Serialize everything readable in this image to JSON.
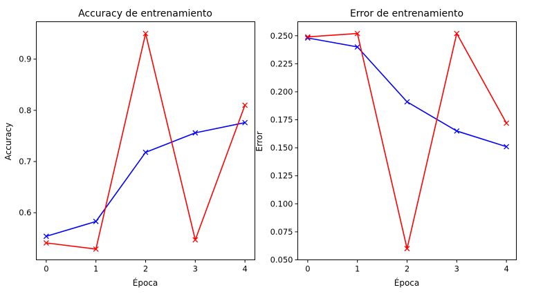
{
  "chart_data": [
    {
      "type": "line",
      "title": "Accuracy de entrenamiento",
      "xlabel": "Época",
      "ylabel": "Accuracy",
      "x": [
        0,
        1,
        2,
        3,
        4
      ],
      "xlim": [
        -0.2,
        4.2
      ],
      "ylim": [
        0.508,
        0.973
      ],
      "xticks": [
        0,
        1,
        2,
        3,
        4
      ],
      "yticks": [
        0.6,
        0.7,
        0.8,
        0.9
      ],
      "ytick_labels": [
        "0.6",
        "0.7",
        "0.8",
        "0.9"
      ],
      "grid": false,
      "series": [
        {
          "color": "#0000ff",
          "marker": "x",
          "values": [
            0.554,
            0.583,
            0.718,
            0.756,
            0.776
          ]
        },
        {
          "color": "#ff0000",
          "marker": "x",
          "values": [
            0.541,
            0.529,
            0.95,
            0.547,
            0.81
          ]
        }
      ]
    },
    {
      "type": "line",
      "title": "Error de entrenamiento",
      "xlabel": "Época",
      "ylabel": "Error",
      "x": [
        0,
        1,
        2,
        3,
        4
      ],
      "xlim": [
        -0.2,
        4.2
      ],
      "ylim": [
        0.05,
        0.2625
      ],
      "xticks": [
        0,
        1,
        2,
        3,
        4
      ],
      "yticks": [
        0.05,
        0.075,
        0.1,
        0.125,
        0.15,
        0.175,
        0.2,
        0.225,
        0.25
      ],
      "ytick_labels": [
        "0.050",
        "0.075",
        "0.100",
        "0.125",
        "0.150",
        "0.175",
        "0.200",
        "0.225",
        "0.250"
      ],
      "grid": false,
      "series": [
        {
          "color": "#0000ff",
          "marker": "x",
          "values": [
            0.248,
            0.24,
            0.191,
            0.165,
            0.151
          ]
        },
        {
          "color": "#ff0000",
          "marker": "x",
          "values": [
            0.249,
            0.252,
            0.06,
            0.252,
            0.172
          ]
        }
      ]
    }
  ]
}
